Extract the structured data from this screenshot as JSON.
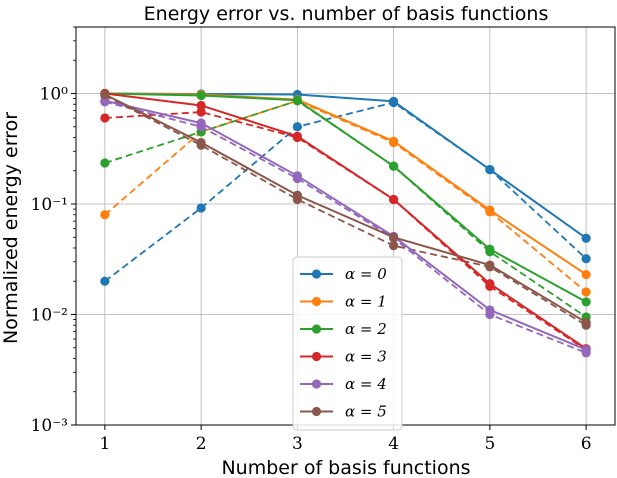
{
  "chart_data": {
    "type": "line",
    "title": "Energy error vs. number of basis functions",
    "xlabel": "Number of basis functions",
    "ylabel": "Normalized energy error",
    "y_scale": "log",
    "ylim": [
      0.001,
      4
    ],
    "xlim": [
      0.7,
      6.3
    ],
    "x": [
      1,
      2,
      3,
      4,
      5,
      6
    ],
    "x_tick_labels": [
      "1",
      "2",
      "3",
      "4",
      "5",
      "6"
    ],
    "y_ticks": [
      {
        "value": 1,
        "label": "10⁰"
      },
      {
        "value": 0.1,
        "label": "10⁻¹"
      },
      {
        "value": 0.01,
        "label": "10⁻²"
      },
      {
        "value": 0.001,
        "label": "10⁻³"
      }
    ],
    "grid": true,
    "legend_position": "lower-center",
    "series": [
      {
        "name": "α = 0",
        "color": "#1f77b4",
        "solid": [
          1.0,
          0.99,
          0.98,
          0.85,
          0.205,
          0.049
        ],
        "dashed": [
          0.02,
          0.092,
          0.5,
          0.83,
          0.205,
          0.032
        ]
      },
      {
        "name": "α = 1",
        "color": "#ff7f0e",
        "solid": [
          1.0,
          0.98,
          0.88,
          0.37,
          0.088,
          0.023
        ],
        "dashed": [
          0.08,
          0.45,
          0.86,
          0.36,
          0.085,
          0.016
        ]
      },
      {
        "name": "α = 2",
        "color": "#2ca02c",
        "solid": [
          1.0,
          0.96,
          0.87,
          0.22,
          0.039,
          0.013
        ],
        "dashed": [
          0.235,
          0.45,
          0.86,
          0.22,
          0.037,
          0.0095
        ]
      },
      {
        "name": "α = 3",
        "color": "#d62728",
        "solid": [
          1.0,
          0.78,
          0.41,
          0.11,
          0.019,
          0.0049
        ],
        "dashed": [
          0.6,
          0.68,
          0.4,
          0.11,
          0.018,
          0.0048
        ]
      },
      {
        "name": "α = 4",
        "color": "#9467bd",
        "solid": [
          0.86,
          0.54,
          0.18,
          0.051,
          0.011,
          0.0048
        ],
        "dashed": [
          0.84,
          0.5,
          0.17,
          0.049,
          0.01,
          0.0045
        ]
      },
      {
        "name": "α = 5",
        "color": "#8c564b",
        "solid": [
          0.98,
          0.36,
          0.12,
          0.05,
          0.028,
          0.0085
        ],
        "dashed": [
          0.96,
          0.34,
          0.11,
          0.042,
          0.027,
          0.008
        ]
      }
    ]
  }
}
